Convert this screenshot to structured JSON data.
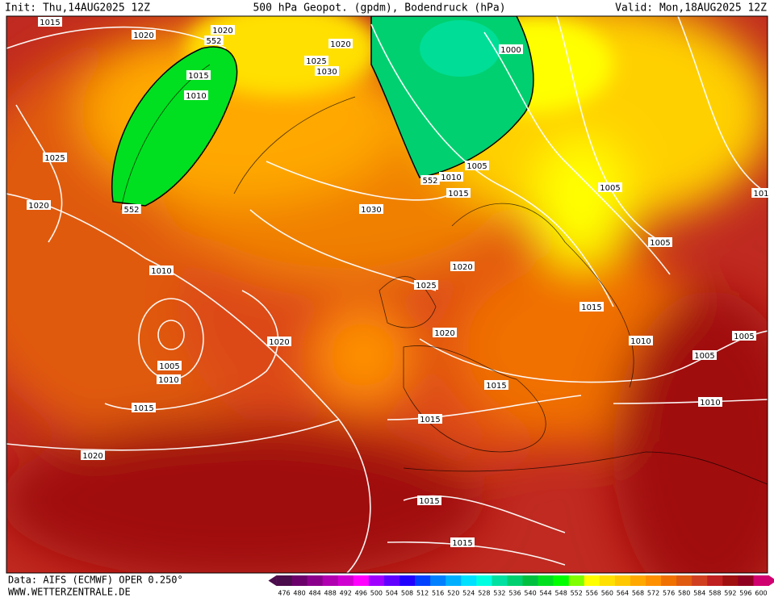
{
  "header": {
    "init": "Init: Thu,14AUG2025 12Z",
    "title": "500 hPa Geopot. (gpdm), Bodendruck (hPa)",
    "valid": "Valid: Mon,18AUG2025 12Z"
  },
  "isobar_labels": [
    "1015",
    "1020",
    "1020",
    "552",
    "1015",
    "1010",
    "1025",
    "1020",
    "552",
    "1020",
    "1025",
    "1030",
    "1000",
    "1030",
    "1010",
    "552",
    "1005",
    "1015",
    "1005",
    "101",
    "1005",
    "1020",
    "1025",
    "1010",
    "1015",
    "1020",
    "1020",
    "1010",
    "1005",
    "1005",
    "1005",
    "1010",
    "1015",
    "1015",
    "1010",
    "1015",
    "1020",
    "1015",
    "1015"
  ],
  "legend": {
    "values": [
      476,
      480,
      484,
      488,
      492,
      496,
      500,
      504,
      508,
      512,
      516,
      520,
      524,
      528,
      532,
      536,
      540,
      544,
      548,
      552,
      556,
      560,
      564,
      568,
      572,
      576,
      580,
      584,
      588,
      592,
      596,
      600
    ],
    "colors": [
      "#4b0c4b",
      "#6b006b",
      "#8b008b",
      "#b000b0",
      "#d000d0",
      "#ff00ff",
      "#a000ff",
      "#6000ff",
      "#2000ff",
      "#0040ff",
      "#0080ff",
      "#00b0ff",
      "#00e0ff",
      "#00ffe0",
      "#00e0a0",
      "#00d070",
      "#00c040",
      "#00e020",
      "#00ff00",
      "#80ff00",
      "#ffff00",
      "#ffe000",
      "#ffc800",
      "#ffa800",
      "#ff9000",
      "#f07000",
      "#e05a10",
      "#d04020",
      "#c02020",
      "#a01010",
      "#900020",
      "#d00070"
    ]
  },
  "footer": {
    "source": "Data: AIFS (ECMWF) OPER 0.250°",
    "site": "WWW.WETTERZENTRALE.DE"
  }
}
